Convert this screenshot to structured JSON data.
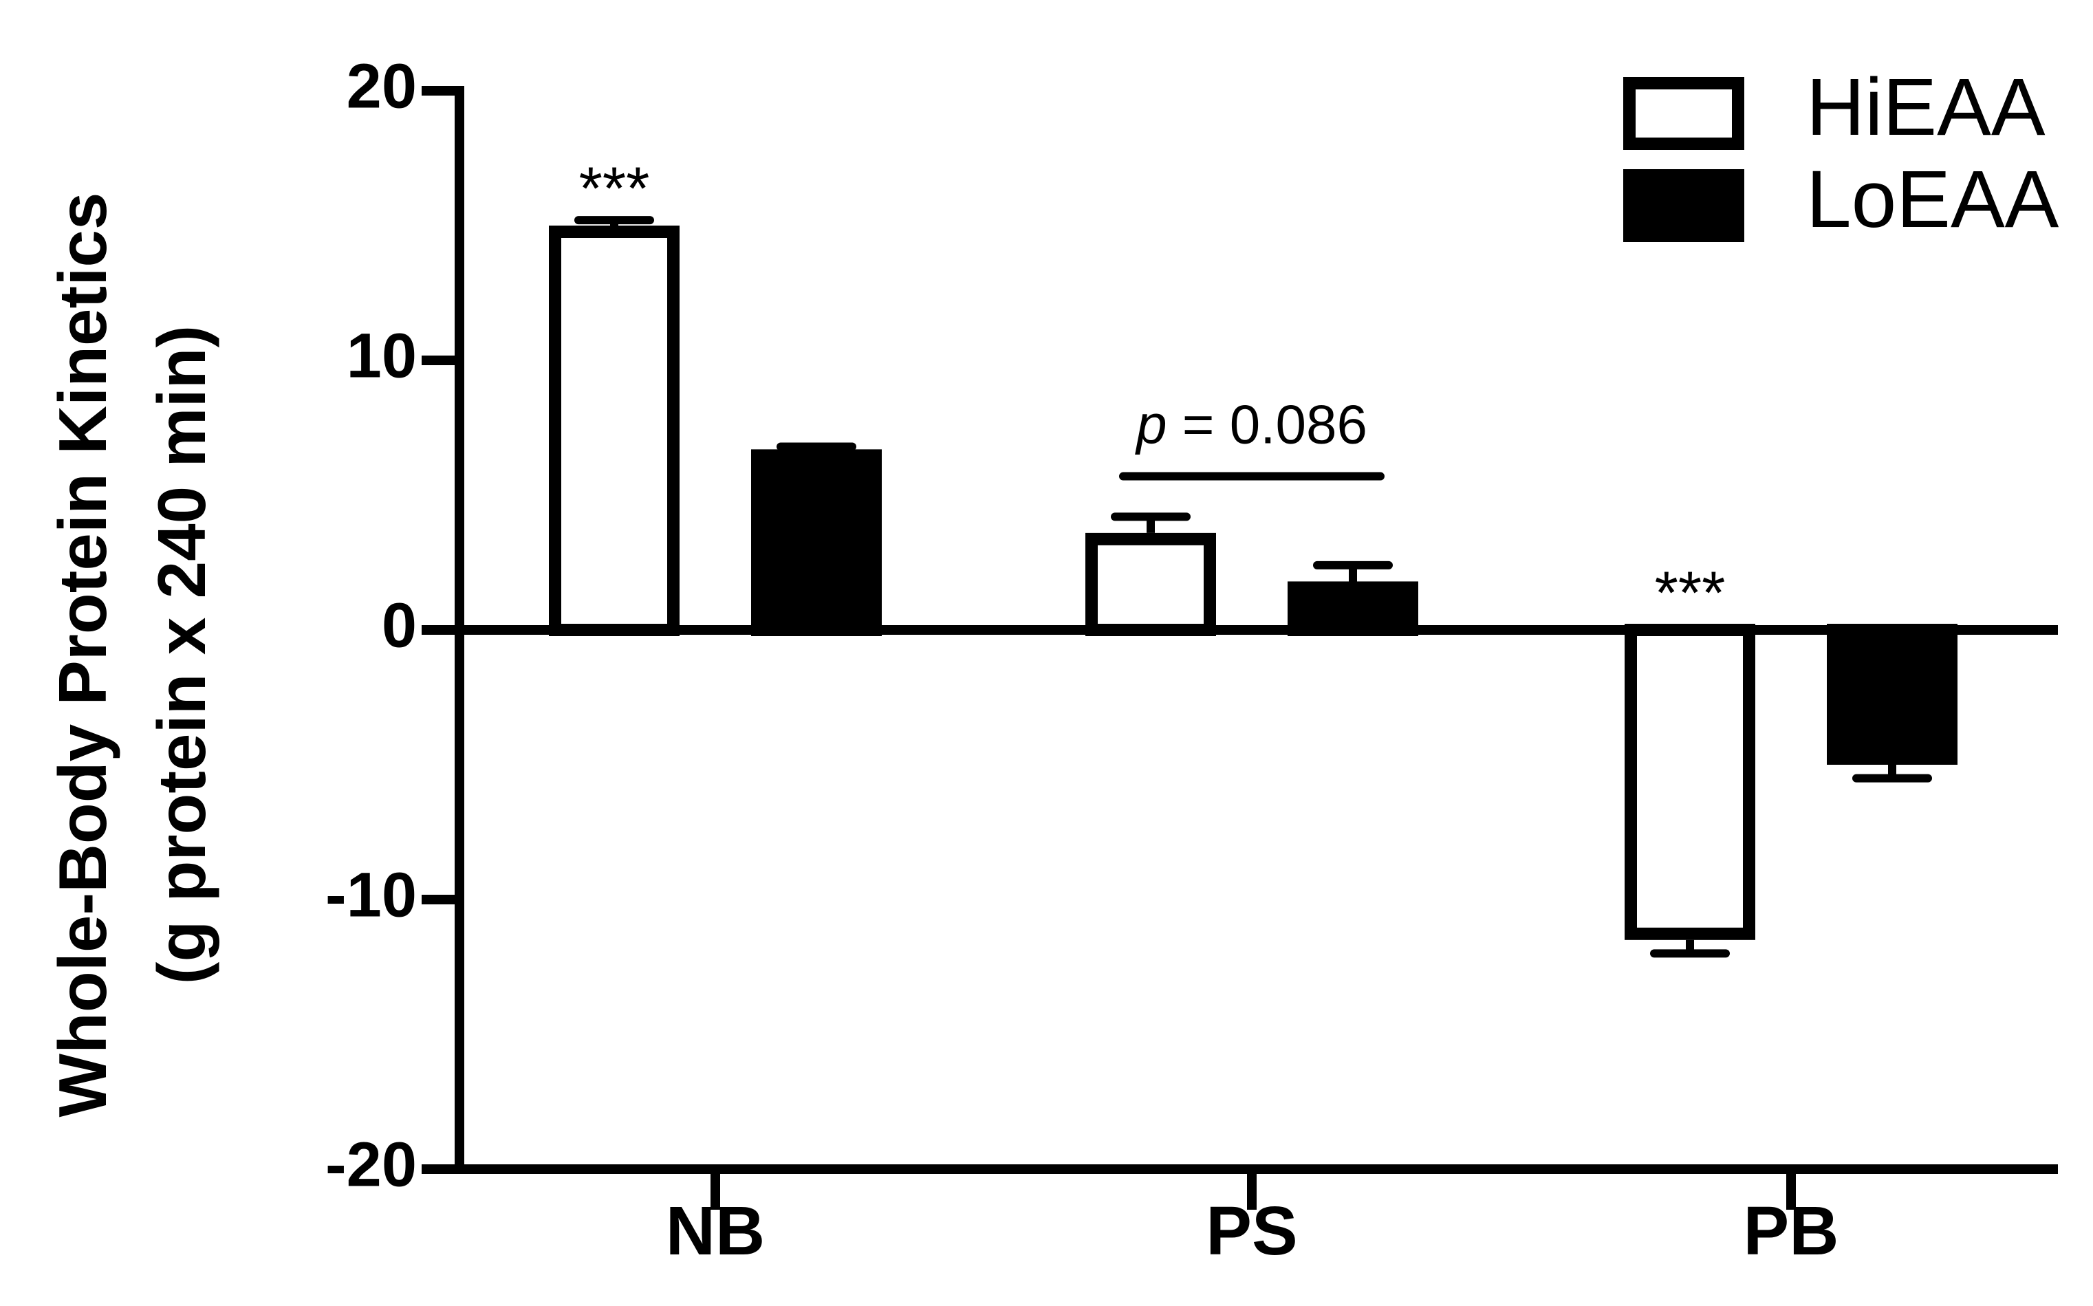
{
  "chart_data": {
    "type": "bar",
    "title": "",
    "xlabel": "",
    "ylabel": "Whole-Body Protein Kinetics",
    "ylabel_line2": "(g protein x 240 min)",
    "ylim": [
      -20,
      20
    ],
    "yticks": [
      20,
      10,
      0,
      -10,
      -20
    ],
    "ytick_labels": [
      "20",
      "10",
      "0",
      "-10",
      "-20"
    ],
    "categories": [
      "NB",
      "PS",
      "PB"
    ],
    "series": [
      {
        "name": "HiEAA",
        "values": [
          15.0,
          3.6,
          -11.5
        ],
        "errors": [
          0.2,
          0.6,
          0.5
        ],
        "color": "#ffffff",
        "stroke": "#000000"
      },
      {
        "name": "LoEAA",
        "values": [
          6.7,
          1.8,
          -5.0
        ],
        "errors": [
          0.1,
          0.6,
          0.5
        ],
        "color": "#000000",
        "stroke": "#000000"
      }
    ],
    "legend_position": "top-right",
    "grid": false,
    "annotations": [
      {
        "text": "***",
        "category": "NB",
        "series": "HiEAA",
        "value": 15.0
      },
      {
        "text": "***",
        "category": "PB",
        "series": "HiEAA",
        "value": 0.0
      }
    ],
    "comparison": {
      "category": "PS",
      "p_symbol": "p",
      "p_value": "= 0.086",
      "line_value": 5.7
    }
  },
  "colors": {
    "axis": "#000000",
    "background": "#ffffff"
  }
}
